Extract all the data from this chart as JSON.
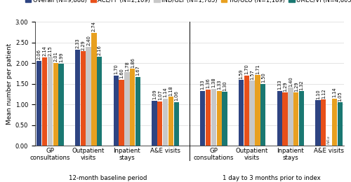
{
  "legend_labels": [
    "Overall (N=9,888)",
    "ACL/FF (N=2,109)",
    "IND/GLY (N=1,785)",
    "TIO/OLO (N=1,189)",
    "UMEC/VI (N=4,805)"
  ],
  "colors": [
    "#2e4482",
    "#e8501a",
    "#c8c8c8",
    "#e8a020",
    "#1a7872"
  ],
  "groups": [
    {
      "label": "GP\nconsultations",
      "values": [
        2.06,
        2.14,
        2.15,
        2.01,
        1.99
      ]
    },
    {
      "label": "Outpatient\nvisits",
      "values": [
        2.33,
        2.29,
        2.4,
        2.74,
        2.16
      ]
    },
    {
      "label": "Inpatient\nstays",
      "values": [
        1.7,
        1.6,
        1.78,
        1.86,
        1.67
      ]
    },
    {
      "label": "A&E visits",
      "values": [
        1.09,
        1.07,
        1.14,
        1.18,
        1.06
      ]
    },
    {
      "label": "GP\nconsultations",
      "values": [
        1.33,
        1.36,
        1.38,
        1.33,
        1.3
      ]
    },
    {
      "label": "Outpatient\nvisits",
      "values": [
        1.59,
        1.7,
        1.57,
        1.71,
        1.5
      ]
    },
    {
      "label": "Inpatient\nstays",
      "values": [
        1.33,
        1.29,
        1.4,
        1.29,
        1.32
      ]
    },
    {
      "label": "A&E visits",
      "values": [
        1.1,
        1.12,
        null,
        1.14,
        1.05
      ],
      "nr_index": 2
    }
  ],
  "ylabel": "Mean number per patient",
  "ylim": [
    0.0,
    3.0
  ],
  "yticks": [
    0.0,
    0.5,
    1.0,
    1.5,
    2.0,
    2.5,
    3.0
  ],
  "period_labels": [
    "12-month baseline period",
    "1 day to 3 months prior to index"
  ],
  "bar_width": 0.115,
  "fontsize_label": 6.2,
  "fontsize_tick": 6.0,
  "fontsize_bar": 4.8,
  "fontsize_legend": 6.0,
  "fontsize_ylabel": 6.5
}
